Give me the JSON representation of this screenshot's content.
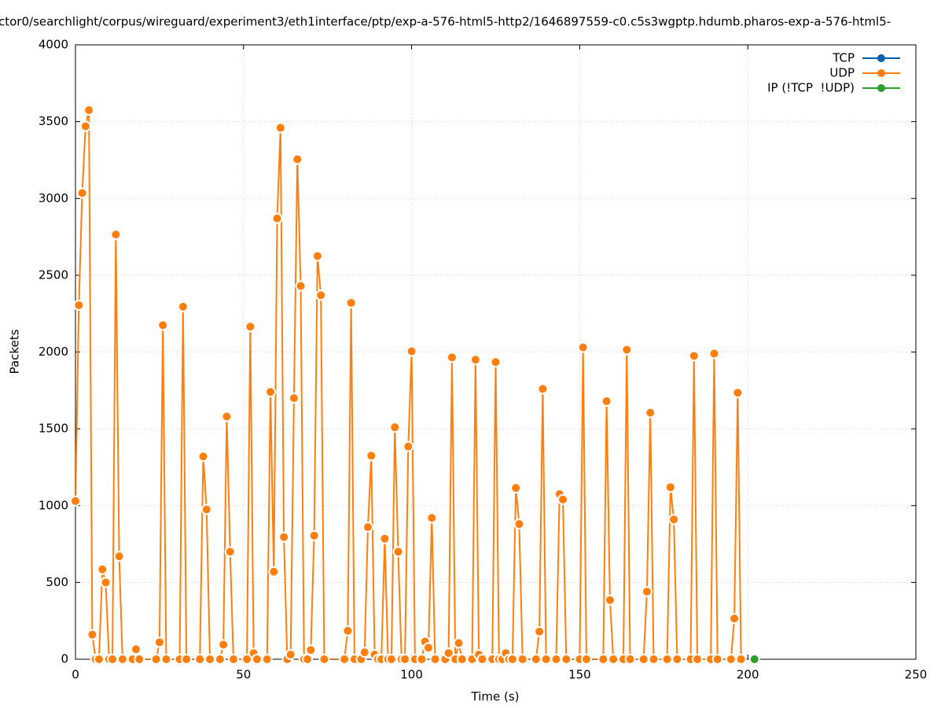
{
  "chart_data": {
    "type": "line",
    "title": "ctor0/searchlight/corpus/wireguard/experiment3/eth1interface/ptp/exp-a-576-html5-http2/1646897559-c0.c5s3wgptp.hdumb.pharos-exp-a-576-html5-",
    "xlabel": "Time (s)",
    "ylabel": "Packets",
    "xlim": [
      0,
      250
    ],
    "xticks": [
      0,
      50,
      100,
      150,
      200,
      250
    ],
    "ylim": [
      0,
      4000
    ],
    "yticks": [
      0,
      500,
      1000,
      1500,
      2000,
      2500,
      3000,
      3500,
      4000
    ],
    "grid": true,
    "legend": "top-right",
    "series": [
      {
        "name": "TCP",
        "color": "#0060ad",
        "x": [],
        "values": []
      },
      {
        "name": "UDP",
        "color": "#ff7f0e",
        "x": [
          0,
          1,
          2,
          3,
          4,
          5,
          6,
          7,
          8,
          9,
          10,
          11,
          12,
          13,
          14,
          17,
          18,
          19,
          24,
          25,
          26,
          27,
          31,
          32,
          33,
          37,
          38,
          39,
          40,
          43,
          44,
          45,
          46,
          47,
          51,
          52,
          53,
          54,
          57,
          58,
          59,
          60,
          61,
          62,
          63,
          64,
          65,
          66,
          67,
          68,
          69,
          70,
          71,
          72,
          73,
          74,
          80,
          81,
          82,
          83,
          85,
          86,
          87,
          88,
          89,
          90,
          91,
          92,
          93,
          94,
          95,
          96,
          97,
          98,
          99,
          100,
          101,
          103,
          104,
          105,
          106,
          107,
          110,
          111,
          112,
          113,
          114,
          115,
          118,
          119,
          120,
          121,
          124,
          125,
          126,
          127,
          128,
          129,
          130,
          131,
          132,
          133,
          137,
          138,
          139,
          140,
          143,
          144,
          145,
          146,
          150,
          151,
          152,
          157,
          158,
          159,
          160,
          163,
          164,
          165,
          169,
          170,
          171,
          172,
          176,
          177,
          178,
          179,
          183,
          184,
          185,
          189,
          190,
          191,
          195,
          196,
          197,
          198
        ],
        "values": [
          1030,
          2305,
          3035,
          3470,
          3575,
          160,
          0,
          0,
          585,
          500,
          0,
          0,
          2765,
          670,
          0,
          0,
          65,
          0,
          0,
          110,
          2175,
          0,
          0,
          2295,
          0,
          0,
          1320,
          975,
          0,
          0,
          95,
          1580,
          700,
          0,
          0,
          2165,
          40,
          0,
          0,
          1740,
          570,
          2870,
          3460,
          795,
          0,
          30,
          1700,
          3255,
          2430,
          0,
          0,
          60,
          805,
          2625,
          2370,
          0,
          0,
          185,
          2320,
          0,
          0,
          45,
          860,
          1325,
          30,
          0,
          0,
          785,
          0,
          0,
          1510,
          700,
          0,
          0,
          1385,
          2005,
          0,
          0,
          115,
          75,
          920,
          0,
          0,
          40,
          1965,
          0,
          105,
          0,
          0,
          1950,
          30,
          0,
          0,
          1935,
          0,
          0,
          40,
          0,
          0,
          1115,
          880,
          0,
          0,
          180,
          1760,
          0,
          0,
          1075,
          1040,
          0,
          0,
          2030,
          0,
          0,
          1680,
          385,
          0,
          0,
          2015,
          0,
          0,
          440,
          1605,
          0,
          0,
          1120,
          910,
          0,
          0,
          1975,
          0,
          0,
          1990,
          0,
          0,
          265,
          1735,
          0
        ]
      },
      {
        "name": "IP (!TCP  !UDP)",
        "color": "#2ca02c",
        "x": [
          202
        ],
        "values": [
          0
        ]
      }
    ]
  }
}
